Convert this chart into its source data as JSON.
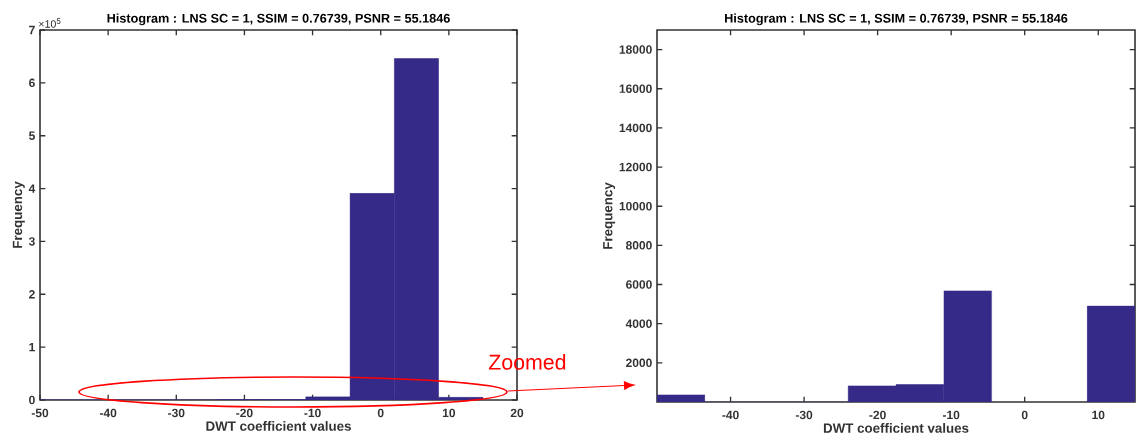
{
  "chart_data": [
    {
      "type": "histogram",
      "title": "Histogram : LNS SC = 1, SSIM = 0.76739, PSNR = 55.1846",
      "xlabel": "DWT coefficient values",
      "ylabel": "Frequency",
      "bins": [
        -50,
        -43.5,
        -37,
        -30.5,
        -24,
        -17.5,
        -11,
        -4.5,
        2,
        8.5,
        15
      ],
      "values": [
        0,
        0,
        0,
        0,
        0.01,
        0.01,
        0.06,
        3.91,
        6.46,
        0.05
      ],
      "color": "#352a87",
      "xlim": [
        -50,
        20
      ],
      "xticks": [
        -50,
        -40,
        -30,
        -20,
        -10,
        0,
        10,
        20
      ],
      "ylim": [
        0,
        7
      ],
      "yticks": [
        0,
        1,
        2,
        3,
        4,
        5,
        6,
        7
      ],
      "annotations": [
        "×10$^{5}$",
        "Zoomed"
      ]
    },
    {
      "type": "histogram",
      "title": "Histogram : LNS SC = 1, SSIM = 0.76739, PSNR = 55.1846",
      "xlabel": "DWT coefficient values",
      "ylabel": "Frequency",
      "bins": [
        -50,
        -43.5,
        -37,
        -30.5,
        -24,
        -17.5,
        -11,
        -4.5,
        2,
        8.5,
        15
      ],
      "values": [
        360,
        0,
        0,
        0,
        830,
        890,
        5680,
        null,
        null,
        4900
      ],
      "color": "#352a87",
      "xlim": [
        -50,
        15
      ],
      "xticks": [
        -40,
        -30,
        -20,
        -10,
        0,
        10
      ],
      "ylim": [
        0,
        19000
      ],
      "yticks": [
        2000,
        4000,
        6000,
        8000,
        10000,
        12000,
        14000,
        16000,
        18000
      ]
    }
  ]
}
